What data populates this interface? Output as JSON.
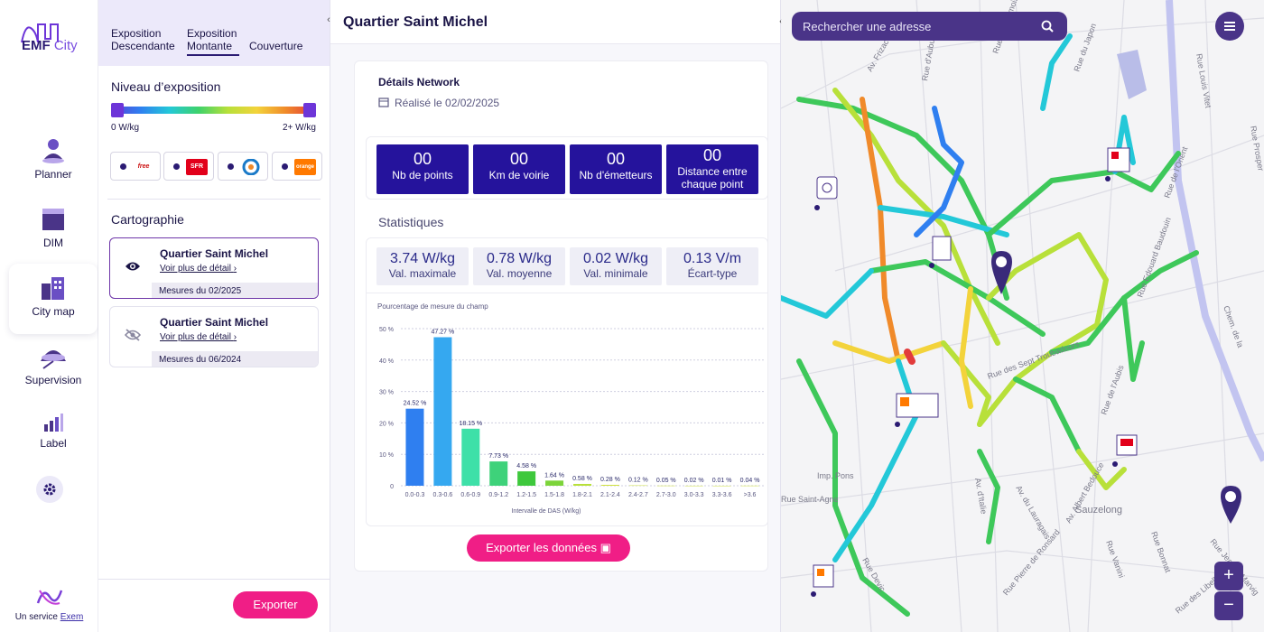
{
  "brand": {
    "name": "EMF",
    "name_suffix": "City",
    "service_prefix": "Un service",
    "service_name": "Exem"
  },
  "nav": [
    {
      "label": "Planner",
      "icon": "person-pin-icon"
    },
    {
      "label": "DIM",
      "icon": "folder-icon"
    },
    {
      "label": "City map",
      "icon": "city-buildings-icon"
    },
    {
      "label": "Supervision",
      "icon": "satellite-dish-icon"
    },
    {
      "label": "Label",
      "icon": "bar-signal-icon"
    }
  ],
  "panel": {
    "tabs": [
      {
        "label": "Exposition Descendante"
      },
      {
        "label": "Exposition Montante"
      },
      {
        "label": "Couverture"
      }
    ],
    "exposure_title": "Niveau d’exposition",
    "scale_min": "0 W/kg",
    "scale_max": "2+ W/kg",
    "operators": [
      {
        "name": "free",
        "color": "#ffffff",
        "text_color": "#cc1111"
      },
      {
        "name": "SFR",
        "color": "#e2001a",
        "text_color": "#ffffff"
      },
      {
        "name": "bouygues",
        "color": "#ffffff",
        "text_color": "#1a7ac8"
      },
      {
        "name": "orange",
        "color": "#ff7900",
        "text_color": "#ffffff"
      }
    ],
    "cartography_title": "Cartographie",
    "cards": [
      {
        "title": "Quartier Saint Michel",
        "link": "Voir plus de détail",
        "footer": "Mesures du 02/2025"
      },
      {
        "title": "Quartier Saint Michel",
        "link": "Voir plus de détail",
        "footer": "Mesures du 06/2024"
      }
    ],
    "export_label": "Exporter"
  },
  "main": {
    "title": "Quartier Saint Michel",
    "details_title": "Détails Network",
    "date_label": "Réalisé le 02/02/2025",
    "tiles": [
      {
        "value": "00",
        "label": "Nb de points"
      },
      {
        "value": "00",
        "label": "Km de voirie"
      },
      {
        "value": "00",
        "label": "Nb d'émetteurs"
      },
      {
        "value": "00",
        "label": "Distance entre chaque point"
      }
    ],
    "stats_title": "Statistiques",
    "stats": [
      {
        "value": "3.74 W/kg",
        "label": "Val. maximale"
      },
      {
        "value": "0.78 W/kg",
        "label": "Val. moyenne"
      },
      {
        "value": "0.02 W/kg",
        "label": "Val. minimale"
      },
      {
        "value": "0.13 V/m",
        "label": "Écart-type"
      }
    ],
    "export_label": "Exporter les données"
  },
  "chart_data": {
    "type": "bar",
    "title": "Pourcentage de mesure du champ",
    "xlabel": "Intervalle de DAS (W/kg)",
    "ylabel": "",
    "ylim": [
      0,
      50
    ],
    "yticks": [
      "0",
      "10 %",
      "20 %",
      "30 %",
      "40 %",
      "50 %"
    ],
    "categories": [
      "0.0-0.3",
      "0.3-0.6",
      "0.6-0.9",
      "0.9-1.2",
      "1.2-1.5",
      "1.5-1.8",
      "1.8-2.1",
      "2.1-2.4",
      "2.4-2.7",
      "2.7-3.0",
      "3.0-3.3",
      "3.3-3.6",
      ">3.6"
    ],
    "values": [
      24.52,
      47.27,
      18.15,
      7.73,
      4.58,
      1.64,
      0.58,
      0.28,
      0.12,
      0.05,
      0.02,
      0.01,
      0.04
    ],
    "labels": [
      "24.52 %",
      "47.27 %",
      "18.15 %",
      "7.73 %",
      "4.58 %",
      "1.64 %",
      "0.58 %",
      "0.28 %",
      "0.12 %",
      "0.05 %",
      "0.02 %",
      "0.01 %",
      "0.04 %"
    ],
    "colors": [
      "#2f7ff0",
      "#35a8f0",
      "#3ee0a8",
      "#3ed27a",
      "#3ec83c",
      "#7cd43a",
      "#b8e03a",
      "#cfe03a",
      "#cfe03a",
      "#cfe03a",
      "#cfe03a",
      "#cfe03a",
      "#cfe03a"
    ]
  },
  "map": {
    "search_placeholder": "Rechercher une adresse",
    "street_labels": [
      "Av. Frizac",
      "Rue d'Aubuisson",
      "Rue des Demoiselles",
      "Rue du Japon",
      "Rue Louis Vitet",
      "Rue Prosper",
      "Rue Edouard Baudouin",
      "Rue de l'Orient",
      "Rue de l'Aubis",
      "Av. d'Italie",
      "Rue des Sept Troubadours",
      "Av. Albert Bedouce",
      "Rue Bonnat",
      "Rue Jeanne Marvig",
      "Chem. de la",
      "Sauzelong",
      "Rue Vanini",
      "Rue Saint-Agne",
      "Imp. Pons",
      "Rue Devic",
      "Rue Pierre de Ronsard",
      "Av. du Lauragais",
      "Rue des Libellules"
    ],
    "zoom_in": "+",
    "zoom_out": "−"
  }
}
